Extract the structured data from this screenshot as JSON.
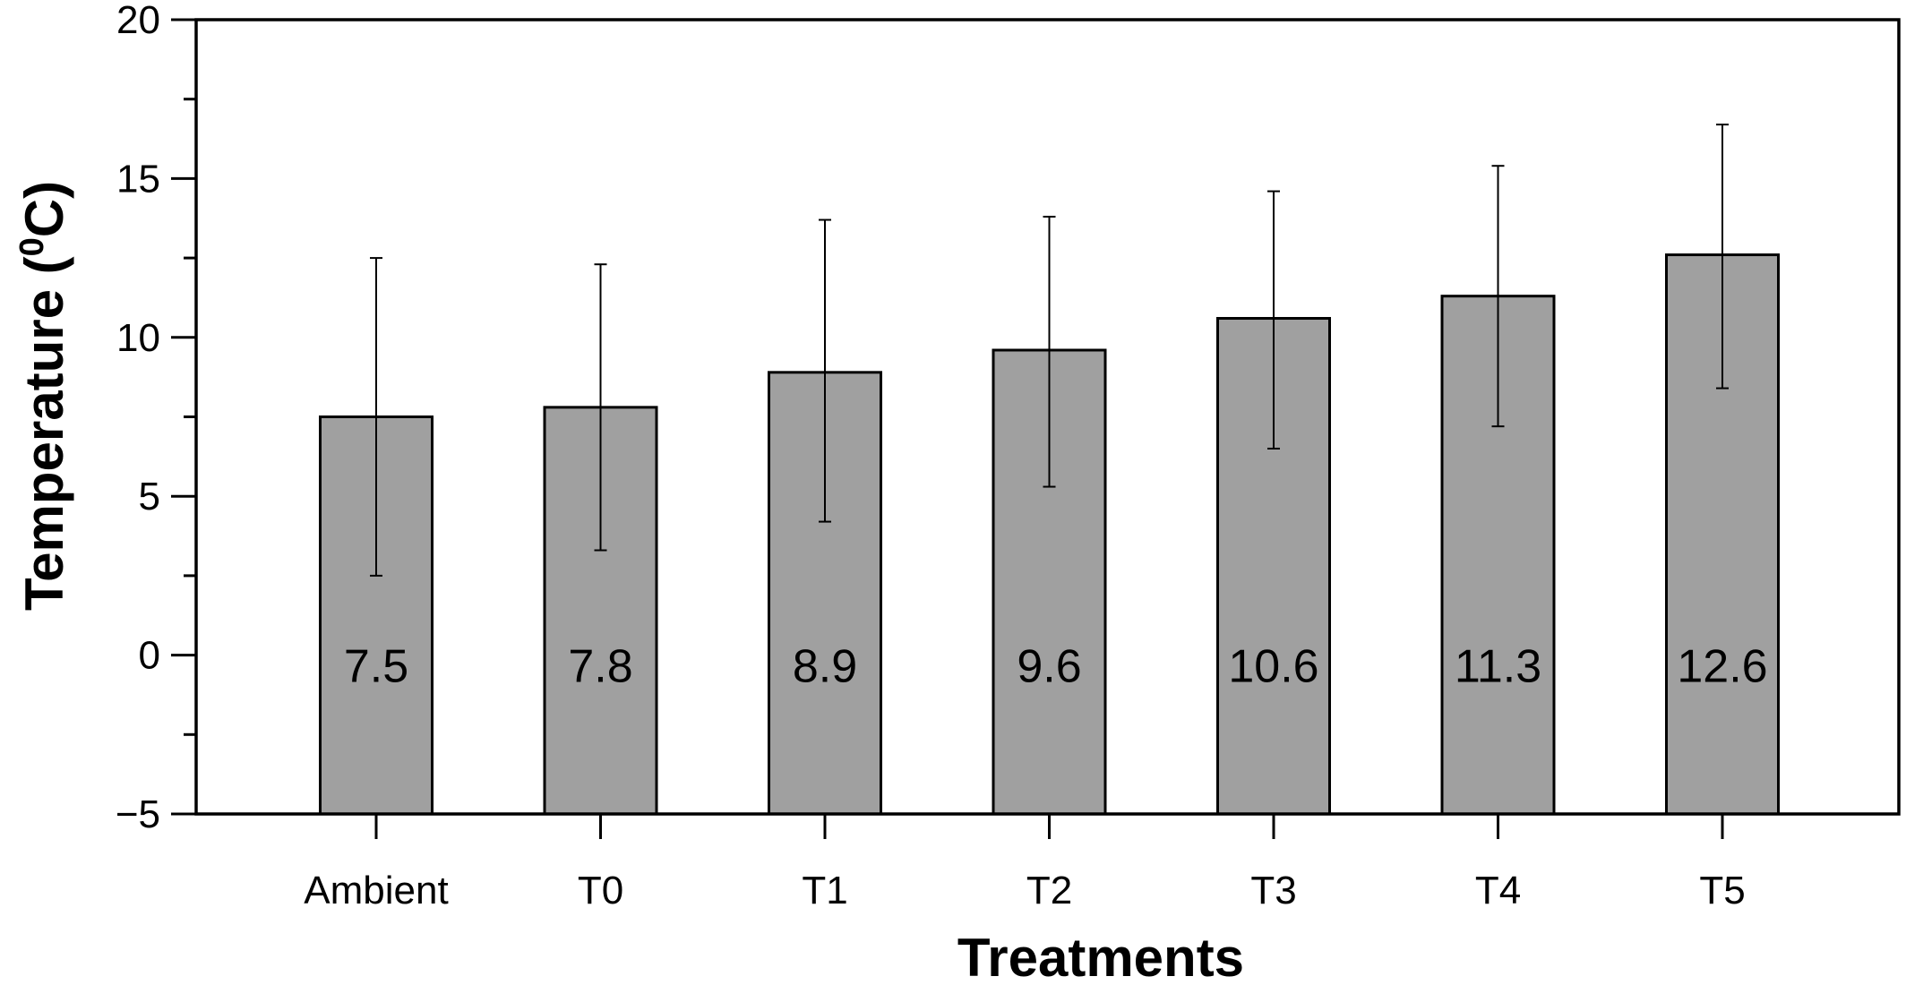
{
  "chart_data": {
    "type": "bar",
    "title": "",
    "xlabel": "Treatments",
    "ylabel": {
      "main": "Temperature (",
      "superscript": "0",
      "unit": "C)"
    },
    "categories": [
      "Ambient",
      "T0",
      "T1",
      "T2",
      "T3",
      "T4",
      "T5"
    ],
    "values": [
      7.5,
      7.8,
      8.9,
      9.6,
      10.6,
      11.3,
      12.6
    ],
    "value_labels": [
      "7.5",
      "7.8",
      "8.9",
      "9.6",
      "10.6",
      "11.3",
      "12.6"
    ],
    "error_upper": [
      12.5,
      12.3,
      13.7,
      13.8,
      14.6,
      15.4,
      16.7
    ],
    "error_lower": [
      2.5,
      3.3,
      4.2,
      5.3,
      6.5,
      7.2,
      8.4
    ],
    "ylim": [
      -5,
      20
    ],
    "yticks": [
      -5,
      0,
      5,
      10,
      15,
      20
    ],
    "ytick_labels": [
      "−5",
      "0",
      "5",
      "10",
      "15",
      "20"
    ],
    "y_minor_step": 2.5,
    "grid": false,
    "legend": "none",
    "colors": {
      "bar_fill": "#a0a0a0",
      "bar_stroke": "#000000",
      "axis": "#000000",
      "error_bar": "#000000"
    }
  }
}
